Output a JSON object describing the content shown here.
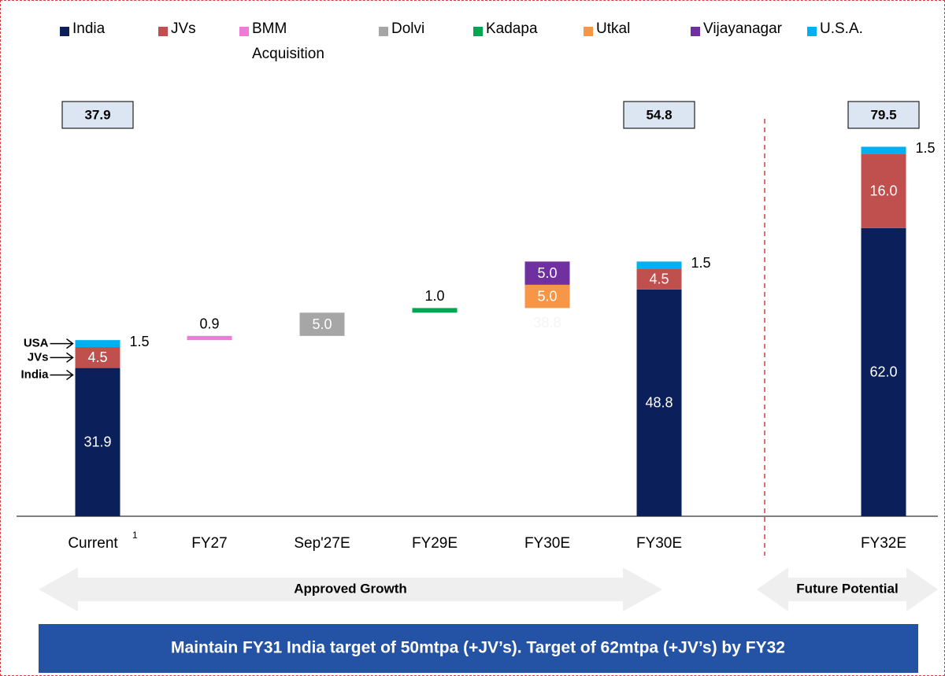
{
  "chart_data": {
    "type": "waterfall",
    "categories": [
      "Current",
      "FY27",
      "Sep'27E",
      "FY29E",
      "FY30E",
      "FY30E",
      "FY32E"
    ],
    "category_footnotes": [
      "1",
      null,
      null,
      null,
      null,
      null,
      null
    ],
    "ylim": [
      0,
      85
    ],
    "totals": [
      37.9,
      null,
      null,
      null,
      null,
      54.8,
      79.5
    ],
    "base_label": 38.8,
    "series": [
      {
        "name": "India",
        "color": "#0b1f5b",
        "label_color": "#ffffff",
        "values": [
          31.9,
          null,
          null,
          null,
          null,
          48.8,
          62.0
        ],
        "value_labels": [
          "31.9",
          null,
          null,
          null,
          null,
          "48.8",
          "62.0"
        ]
      },
      {
        "name": "JVs",
        "color": "#c0504d",
        "label_color": "#ffffff",
        "values": [
          4.5,
          null,
          null,
          null,
          null,
          4.5,
          16.0
        ],
        "value_labels": [
          "4.5",
          null,
          null,
          null,
          null,
          "4.5",
          "16.0"
        ]
      },
      {
        "name": "BMM Acquisition",
        "color": "#f07ad8",
        "label_color": "#000000",
        "values": [
          null,
          0.9,
          null,
          null,
          null,
          null,
          null
        ],
        "value_labels": [
          null,
          "0.9",
          null,
          null,
          null,
          null,
          null
        ]
      },
      {
        "name": "Dolvi",
        "color": "#a6a6a6",
        "label_color": "#ffffff",
        "values": [
          null,
          null,
          5.0,
          null,
          null,
          null,
          null
        ],
        "value_labels": [
          null,
          null,
          "5.0",
          null,
          null,
          null,
          null
        ]
      },
      {
        "name": "Kadapa",
        "color": "#00a651",
        "label_color": "#000000",
        "values": [
          null,
          null,
          null,
          1.0,
          null,
          null,
          null
        ],
        "value_labels": [
          null,
          null,
          null,
          "1.0",
          null,
          null,
          null
        ]
      },
      {
        "name": "Utkal",
        "color": "#f79646",
        "label_color": "#ffffff",
        "values": [
          null,
          null,
          null,
          null,
          5.0,
          null,
          null
        ],
        "value_labels": [
          null,
          null,
          null,
          null,
          "5.0",
          null,
          null
        ]
      },
      {
        "name": "Vijayanagar",
        "color": "#7030a0",
        "label_color": "#ffffff",
        "values": [
          null,
          null,
          null,
          null,
          5.0,
          null,
          null
        ],
        "value_labels": [
          null,
          null,
          null,
          null,
          "5.0",
          null,
          null
        ]
      },
      {
        "name": "U.S.A.",
        "color": "#00b0f0",
        "label_color": "#000000",
        "values": [
          1.5,
          null,
          null,
          null,
          null,
          1.5,
          1.5
        ],
        "value_labels": [
          "1.5",
          null,
          null,
          null,
          null,
          "1.5",
          "1.5"
        ]
      }
    ],
    "annotations": [
      "USA",
      "JVs",
      "India"
    ],
    "ranges": [
      "Approved Growth",
      "Future Potential"
    ],
    "banner": "Maintain FY31 India target of 50mtpa (+JV’s). Target of 62mtpa (+JV’s) by FY32"
  }
}
